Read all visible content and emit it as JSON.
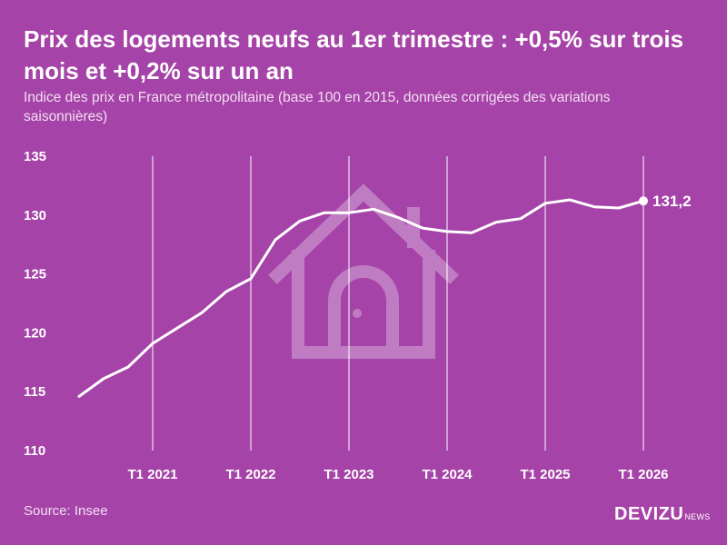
{
  "title": "Prix des logements neufs au 1er trimestre : +0,5% sur trois mois et +0,2% sur un an",
  "subtitle": "Indice des prix en France métropolitaine (base 100 en 2015, données corrigées des variations saisonnières)",
  "source": "Source: Insee",
  "brand": {
    "name": "DEVIZU",
    "suffix": "NEWS"
  },
  "colors": {
    "background": "#a643a8",
    "line": "#ffffff",
    "watermark": "#c07cc2"
  },
  "watermark_icon": "house-icon",
  "chart_data": {
    "type": "line",
    "title": "Prix des logements neufs au 1er trimestre : +0,5% sur trois mois et +0,2% sur un an",
    "xlabel": "",
    "ylabel": "",
    "ylim": [
      110,
      135
    ],
    "yticks": [
      110,
      115,
      120,
      125,
      130,
      135
    ],
    "xticks": [
      "T1 2021",
      "T1 2022",
      "T1 2023",
      "T1 2024",
      "T1 2025",
      "T1 2026"
    ],
    "grid": "vertical lines at each T1",
    "x": [
      "T2 2020",
      "T3 2020",
      "T4 2020",
      "T1 2021",
      "T2 2021",
      "T3 2021",
      "T4 2021",
      "T1 2022",
      "T2 2022",
      "T3 2022",
      "T4 2022",
      "T1 2023",
      "T2 2023",
      "T3 2023",
      "T4 2023",
      "T1 2024",
      "T2 2024",
      "T3 2024",
      "T4 2024",
      "T1 2025",
      "T2 2025",
      "T3 2025",
      "T4 2025",
      "T1 2026"
    ],
    "values": [
      114.6,
      116.1,
      117.1,
      119.1,
      120.4,
      121.7,
      123.5,
      124.6,
      127.9,
      129.5,
      130.2,
      130.2,
      130.5,
      129.8,
      128.9,
      128.6,
      128.5,
      129.4,
      129.7,
      131.0,
      131.3,
      130.7,
      130.6,
      131.2
    ],
    "end_label": "131,2"
  }
}
